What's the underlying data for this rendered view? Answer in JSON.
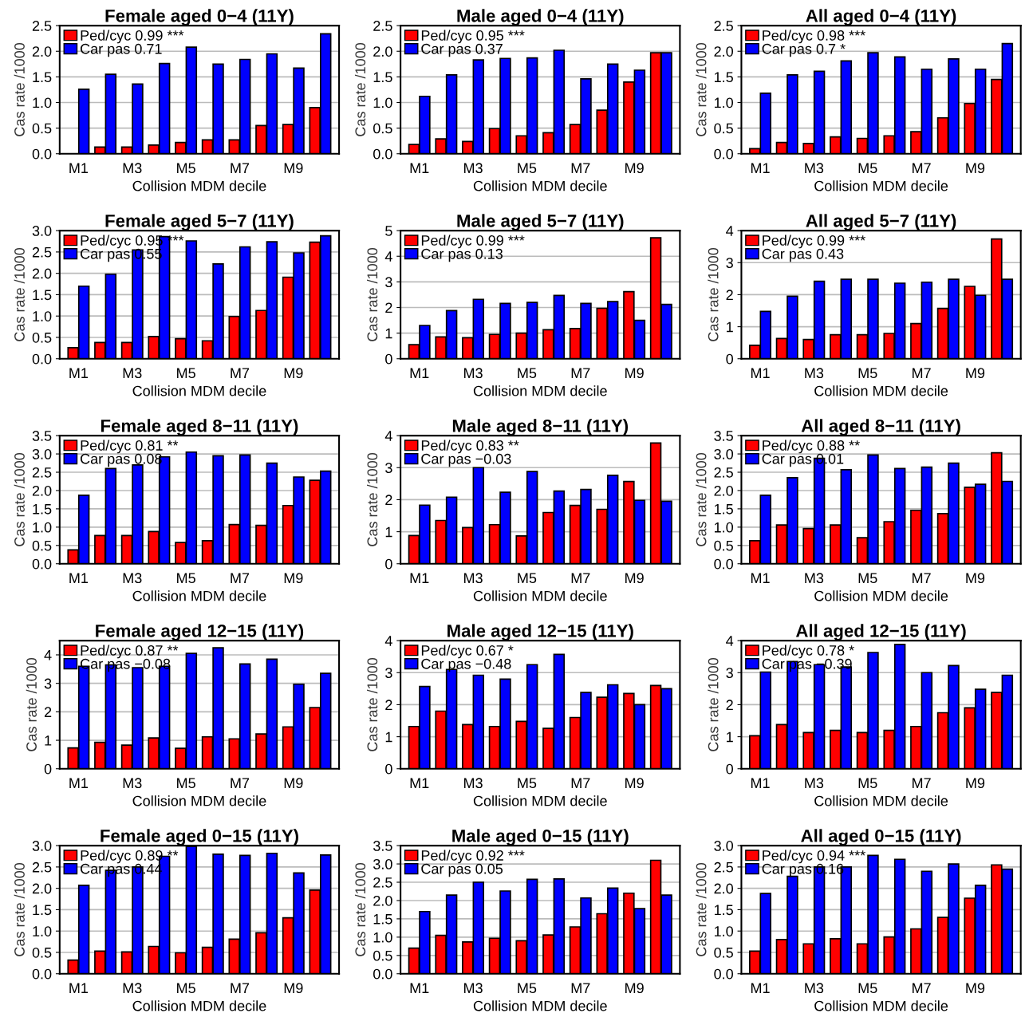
{
  "chart_data": [
    {
      "type": "bar",
      "title": "Female aged 0−4 (11Y)",
      "xlabel": "Collision MDM decile",
      "ylabel": "Cas rate /1000",
      "categories": [
        "M1",
        null,
        "M3",
        null,
        "M5",
        null,
        "M7",
        null,
        "M9",
        null
      ],
      "grid": "y",
      "legend": "top left",
      "ylim": [
        0,
        2.5
      ],
      "yticks": [
        {
          "value": 0,
          "label": "0.0"
        },
        {
          "value": 0.5,
          "label": "0.5"
        },
        {
          "value": 1,
          "label": "1.0"
        },
        {
          "value": 1.5,
          "label": "1.5"
        },
        {
          "value": 2,
          "label": "2.0"
        },
        {
          "value": 2.5,
          "label": "2.5"
        }
      ],
      "series": [
        {
          "name": "Ped/cyc 0.99 ***",
          "color": "#ff0000",
          "values": [
            null,
            0.13,
            0.13,
            0.17,
            0.22,
            0.27,
            0.27,
            0.55,
            0.57,
            0.9
          ]
        },
        {
          "name": "Car pas 0.71",
          "color": "#0000ff",
          "values": [
            1.26,
            1.55,
            1.36,
            1.76,
            2.08,
            1.75,
            1.84,
            1.95,
            1.67,
            2.34
          ]
        }
      ]
    },
    {
      "type": "bar",
      "title": "Male aged 0−4 (11Y)",
      "xlabel": "Collision MDM decile",
      "ylabel": "Cas rate /1000",
      "categories": [
        "M1",
        null,
        "M3",
        null,
        "M5",
        null,
        "M7",
        null,
        "M9",
        null
      ],
      "grid": "y",
      "legend": "top left",
      "ylim": [
        0,
        2.5
      ],
      "yticks": [
        {
          "value": 0,
          "label": "0.0"
        },
        {
          "value": 0.5,
          "label": "0.5"
        },
        {
          "value": 1,
          "label": "1.0"
        },
        {
          "value": 1.5,
          "label": "1.5"
        },
        {
          "value": 2,
          "label": "2.0"
        },
        {
          "value": 2.5,
          "label": "2.5"
        }
      ],
      "series": [
        {
          "name": "Ped/cyc 0.95 ***",
          "color": "#ff0000",
          "values": [
            0.18,
            0.29,
            0.24,
            0.49,
            0.35,
            0.41,
            0.57,
            0.85,
            1.4,
            1.97
          ]
        },
        {
          "name": "Car pas 0.37",
          "color": "#0000ff",
          "values": [
            1.12,
            1.54,
            1.83,
            1.86,
            1.87,
            2.02,
            1.46,
            1.75,
            1.63,
            1.97
          ]
        }
      ]
    },
    {
      "type": "bar",
      "title": "All aged 0−4 (11Y)",
      "xlabel": "Collision MDM decile",
      "ylabel": "Cas rate /1000",
      "categories": [
        "M1",
        null,
        "M3",
        null,
        "M5",
        null,
        "M7",
        null,
        "M9",
        null
      ],
      "grid": "y",
      "legend": "top left",
      "ylim": [
        0,
        2.5
      ],
      "yticks": [
        {
          "value": 0,
          "label": "0.0"
        },
        {
          "value": 0.5,
          "label": "0.5"
        },
        {
          "value": 1,
          "label": "1.0"
        },
        {
          "value": 1.5,
          "label": "1.5"
        },
        {
          "value": 2,
          "label": "2.0"
        },
        {
          "value": 2.5,
          "label": "2.5"
        }
      ],
      "series": [
        {
          "name": "Ped/cyc 0.98 ***",
          "color": "#ff0000",
          "values": [
            0.1,
            0.22,
            0.2,
            0.33,
            0.3,
            0.35,
            0.43,
            0.7,
            0.98,
            1.45
          ]
        },
        {
          "name": "Car pas 0.7 *",
          "color": "#0000ff",
          "values": [
            1.18,
            1.54,
            1.61,
            1.81,
            1.97,
            1.89,
            1.65,
            1.85,
            1.65,
            2.15
          ]
        }
      ]
    },
    {
      "type": "bar",
      "title": "Female aged 5−7 (11Y)",
      "xlabel": "Collision MDM decile",
      "ylabel": "Cas rate /1000",
      "categories": [
        "M1",
        null,
        "M3",
        null,
        "M5",
        null,
        "M7",
        null,
        "M9",
        null
      ],
      "grid": "y",
      "legend": "top left",
      "ylim": [
        0,
        3
      ],
      "yticks": [
        {
          "value": 0,
          "label": "0.0"
        },
        {
          "value": 0.5,
          "label": "0.5"
        },
        {
          "value": 1,
          "label": "1.0"
        },
        {
          "value": 1.5,
          "label": "1.5"
        },
        {
          "value": 2,
          "label": "2.0"
        },
        {
          "value": 2.5,
          "label": "2.5"
        },
        {
          "value": 3,
          "label": "3.0"
        }
      ],
      "series": [
        {
          "name": "Ped/cyc 0.95 ***",
          "color": "#ff0000",
          "values": [
            0.26,
            0.38,
            0.38,
            0.52,
            0.47,
            0.42,
            0.99,
            1.13,
            1.91,
            2.73
          ]
        },
        {
          "name": "Car pas 0.55",
          "color": "#0000ff",
          "values": [
            1.7,
            1.98,
            2.55,
            2.86,
            2.76,
            2.22,
            2.62,
            2.74,
            2.48,
            2.88
          ]
        }
      ]
    },
    {
      "type": "bar",
      "title": "Male aged 5−7 (11Y)",
      "xlabel": "Collision MDM decile",
      "ylabel": "Cas rate /1000",
      "categories": [
        "M1",
        null,
        "M3",
        null,
        "M5",
        null,
        "M7",
        null,
        "M9",
        null
      ],
      "grid": "y",
      "legend": "top left",
      "ylim": [
        0,
        5
      ],
      "yticks": [
        0,
        1,
        2,
        3,
        4,
        5
      ],
      "series": [
        {
          "name": "Ped/cyc 0.99 ***",
          "color": "#ff0000",
          "values": [
            0.55,
            0.85,
            0.82,
            0.95,
            1.0,
            1.13,
            1.18,
            1.97,
            2.62,
            4.72
          ]
        },
        {
          "name": "Car pas 0.13",
          "color": "#0000ff",
          "values": [
            1.3,
            1.88,
            2.32,
            2.16,
            2.2,
            2.47,
            2.16,
            2.23,
            1.5,
            2.12
          ]
        }
      ]
    },
    {
      "type": "bar",
      "title": "All aged 5−7 (11Y)",
      "xlabel": "Collision MDM decile",
      "ylabel": "Cas rate /1000",
      "categories": [
        "M1",
        null,
        "M3",
        null,
        "M5",
        null,
        "M7",
        null,
        "M9",
        null
      ],
      "grid": "y",
      "legend": "top left",
      "ylim": [
        0,
        4
      ],
      "yticks": [
        0,
        1,
        2,
        3,
        4
      ],
      "series": [
        {
          "name": "Ped/cyc 0.99 ***",
          "color": "#ff0000",
          "values": [
            0.42,
            0.63,
            0.6,
            0.75,
            0.75,
            0.79,
            1.1,
            1.57,
            2.26,
            3.74
          ]
        },
        {
          "name": "Car pas 0.43",
          "color": "#0000ff",
          "values": [
            1.48,
            1.95,
            2.42,
            2.48,
            2.48,
            2.36,
            2.39,
            2.48,
            1.98,
            2.48
          ]
        }
      ]
    },
    {
      "type": "bar",
      "title": "Female aged 8−11 (11Y)",
      "xlabel": "Collision MDM decile",
      "ylabel": "Cas rate /1000",
      "categories": [
        "M1",
        null,
        "M3",
        null,
        "M5",
        null,
        "M7",
        null,
        "M9",
        null
      ],
      "grid": "y",
      "legend": "top left",
      "ylim": [
        0,
        3.5
      ],
      "yticks": [
        {
          "value": 0,
          "label": "0.0"
        },
        {
          "value": 0.5,
          "label": "0.5"
        },
        {
          "value": 1,
          "label": "1.0"
        },
        {
          "value": 1.5,
          "label": "1.5"
        },
        {
          "value": 2,
          "label": "2.0"
        },
        {
          "value": 2.5,
          "label": "2.5"
        },
        {
          "value": 3,
          "label": "3.0"
        },
        {
          "value": 3.5,
          "label": "3.5"
        }
      ],
      "series": [
        {
          "name": "Ped/cyc 0.81 **",
          "color": "#ff0000",
          "values": [
            0.38,
            0.77,
            0.77,
            0.88,
            0.58,
            0.63,
            1.07,
            1.05,
            1.59,
            2.28
          ]
        },
        {
          "name": "Car pas 0.08",
          "color": "#0000ff",
          "values": [
            1.87,
            2.6,
            2.7,
            2.92,
            3.05,
            2.95,
            2.97,
            2.75,
            2.37,
            2.53
          ]
        }
      ]
    },
    {
      "type": "bar",
      "title": "Male aged 8−11 (11Y)",
      "xlabel": "Collision MDM decile",
      "ylabel": "Cas rate /1000",
      "categories": [
        "M1",
        null,
        "M3",
        null,
        "M5",
        null,
        "M7",
        null,
        "M9",
        null
      ],
      "grid": "y",
      "legend": "top left",
      "ylim": [
        0,
        4
      ],
      "yticks": [
        0,
        1,
        2,
        3,
        4
      ],
      "series": [
        {
          "name": "Ped/cyc 0.83 **",
          "color": "#ff0000",
          "values": [
            0.88,
            1.35,
            1.13,
            1.22,
            0.87,
            1.6,
            1.82,
            1.7,
            2.57,
            3.77
          ]
        },
        {
          "name": "Car pas −0.03",
          "color": "#0000ff",
          "values": [
            1.83,
            2.08,
            3.0,
            2.23,
            2.88,
            2.27,
            2.32,
            2.76,
            1.98,
            1.95
          ]
        }
      ]
    },
    {
      "type": "bar",
      "title": "All aged 8−11 (11Y)",
      "xlabel": "Collision MDM decile",
      "ylabel": "Cas rate /1000",
      "categories": [
        "M1",
        null,
        "M3",
        null,
        "M5",
        null,
        "M7",
        null,
        "M9",
        null
      ],
      "grid": "y",
      "legend": "top left",
      "ylim": [
        0,
        3.5
      ],
      "yticks": [
        {
          "value": 0,
          "label": "0.0"
        },
        {
          "value": 0.5,
          "label": "0.5"
        },
        {
          "value": 1,
          "label": "1.0"
        },
        {
          "value": 1.5,
          "label": "1.5"
        },
        {
          "value": 2,
          "label": "2.0"
        },
        {
          "value": 2.5,
          "label": "2.5"
        },
        {
          "value": 3,
          "label": "3.0"
        },
        {
          "value": 3.5,
          "label": "3.5"
        }
      ],
      "series": [
        {
          "name": "Ped/cyc 0.88 **",
          "color": "#ff0000",
          "values": [
            0.63,
            1.06,
            0.96,
            1.06,
            0.71,
            1.15,
            1.46,
            1.37,
            2.09,
            3.03
          ]
        },
        {
          "name": "Car pas 0.01",
          "color": "#0000ff",
          "values": [
            1.87,
            2.35,
            2.88,
            2.57,
            2.97,
            2.6,
            2.64,
            2.75,
            2.17,
            2.25
          ]
        }
      ]
    },
    {
      "type": "bar",
      "title": "Female aged 12−15 (11Y)",
      "xlabel": "Collision MDM decile",
      "ylabel": "Cas rate /1000",
      "categories": [
        "M1",
        null,
        "M3",
        null,
        "M5",
        null,
        "M7",
        null,
        "M9",
        null
      ],
      "grid": "y",
      "legend": "top left",
      "ylim": [
        0,
        4.5
      ],
      "yticks": [
        0,
        1,
        2,
        3,
        4
      ],
      "series": [
        {
          "name": "Ped/cyc 0.87 **",
          "color": "#ff0000",
          "values": [
            0.73,
            0.93,
            0.83,
            1.08,
            0.72,
            1.12,
            1.05,
            1.22,
            1.47,
            2.15
          ]
        },
        {
          "name": "Car pas −0.08",
          "color": "#0000ff",
          "values": [
            3.6,
            3.65,
            3.55,
            3.6,
            4.05,
            4.25,
            3.68,
            3.85,
            2.97,
            3.35
          ]
        }
      ]
    },
    {
      "type": "bar",
      "title": "Male aged 12−15 (11Y)",
      "xlabel": "Collision MDM decile",
      "ylabel": "Cas rate /1000",
      "categories": [
        "M1",
        null,
        "M3",
        null,
        "M5",
        null,
        "M7",
        null,
        "M9",
        null
      ],
      "grid": "y",
      "legend": "top left",
      "ylim": [
        0,
        4
      ],
      "yticks": [
        0,
        1,
        2,
        3,
        4
      ],
      "series": [
        {
          "name": "Ped/cyc 0.67 *",
          "color": "#ff0000",
          "values": [
            1.32,
            1.8,
            1.38,
            1.32,
            1.48,
            1.26,
            1.6,
            2.23,
            2.35,
            2.6
          ]
        },
        {
          "name": "Car pas −0.48",
          "color": "#0000ff",
          "values": [
            2.57,
            3.1,
            2.92,
            2.8,
            3.25,
            3.57,
            2.38,
            2.62,
            2.0,
            2.5
          ]
        }
      ]
    },
    {
      "type": "bar",
      "title": "All aged 12−15 (11Y)",
      "xlabel": "Collision MDM decile",
      "ylabel": "Cas rate /1000",
      "categories": [
        "M1",
        null,
        "M3",
        null,
        "M5",
        null,
        "M7",
        null,
        "M9",
        null
      ],
      "grid": "y",
      "legend": "top left",
      "ylim": [
        0,
        4
      ],
      "yticks": [
        0,
        1,
        2,
        3,
        4
      ],
      "series": [
        {
          "name": "Ped/cyc 0.78 *",
          "color": "#ff0000",
          "values": [
            1.03,
            1.38,
            1.13,
            1.2,
            1.13,
            1.2,
            1.32,
            1.75,
            1.9,
            2.38
          ]
        },
        {
          "name": "Car pas −0.39",
          "color": "#0000ff",
          "values": [
            3.02,
            3.35,
            3.25,
            3.18,
            3.63,
            3.88,
            3.0,
            3.22,
            2.48,
            2.92
          ]
        }
      ]
    },
    {
      "type": "bar",
      "title": "Female aged 0−15 (11Y)",
      "xlabel": "Collision MDM decile",
      "ylabel": "Cas rate /1000",
      "categories": [
        "M1",
        null,
        "M3",
        null,
        "M5",
        null,
        "M7",
        null,
        "M9",
        null
      ],
      "grid": "y",
      "legend": "top left",
      "ylim": [
        0,
        3
      ],
      "yticks": [
        {
          "value": 0,
          "label": "0.0"
        },
        {
          "value": 0.5,
          "label": "0.5"
        },
        {
          "value": 1,
          "label": "1.0"
        },
        {
          "value": 1.5,
          "label": "1.5"
        },
        {
          "value": 2,
          "label": "2.0"
        },
        {
          "value": 2.5,
          "label": "2.5"
        },
        {
          "value": 3,
          "label": "3.0"
        }
      ],
      "series": [
        {
          "name": "Ped/cyc 0.89 **",
          "color": "#ff0000",
          "values": [
            0.32,
            0.53,
            0.51,
            0.64,
            0.49,
            0.62,
            0.81,
            0.96,
            1.31,
            1.96
          ]
        },
        {
          "name": "Car pas 0.44",
          "color": "#0000ff",
          "values": [
            2.07,
            2.42,
            2.5,
            2.75,
            2.98,
            2.8,
            2.77,
            2.82,
            2.36,
            2.78
          ]
        }
      ]
    },
    {
      "type": "bar",
      "title": "Male aged 0−15 (11Y)",
      "xlabel": "Collision MDM decile",
      "ylabel": "Cas rate /1000",
      "categories": [
        "M1",
        null,
        "M3",
        null,
        "M5",
        null,
        "M7",
        null,
        "M9",
        null
      ],
      "grid": "y",
      "legend": "top left",
      "ylim": [
        0,
        3.5
      ],
      "yticks": [
        {
          "value": 0,
          "label": "0.0"
        },
        {
          "value": 0.5,
          "label": "0.5"
        },
        {
          "value": 1,
          "label": "1.0"
        },
        {
          "value": 1.5,
          "label": "1.5"
        },
        {
          "value": 2,
          "label": "2.0"
        },
        {
          "value": 2.5,
          "label": "2.5"
        },
        {
          "value": 3,
          "label": "3.0"
        },
        {
          "value": 3.5,
          "label": "3.5"
        }
      ],
      "series": [
        {
          "name": "Ped/cyc 0.92 ***",
          "color": "#ff0000",
          "values": [
            0.7,
            1.05,
            0.87,
            0.97,
            0.9,
            1.06,
            1.28,
            1.64,
            2.2,
            3.1
          ]
        },
        {
          "name": "Car pas 0.05",
          "color": "#0000ff",
          "values": [
            1.7,
            2.15,
            2.5,
            2.26,
            2.58,
            2.59,
            2.07,
            2.34,
            1.78,
            2.15
          ]
        }
      ]
    },
    {
      "type": "bar",
      "title": "All aged 0−15 (11Y)",
      "xlabel": "Collision MDM decile",
      "ylabel": "Cas rate /1000",
      "categories": [
        "M1",
        null,
        "M3",
        null,
        "M5",
        null,
        "M7",
        null,
        "M9",
        null
      ],
      "grid": "y",
      "legend": "top left",
      "ylim": [
        0,
        3
      ],
      "yticks": [
        {
          "value": 0,
          "label": "0.0"
        },
        {
          "value": 0.5,
          "label": "0.5"
        },
        {
          "value": 1,
          "label": "1.0"
        },
        {
          "value": 1.5,
          "label": "1.5"
        },
        {
          "value": 2,
          "label": "2.0"
        },
        {
          "value": 2.5,
          "label": "2.5"
        },
        {
          "value": 3,
          "label": "3.0"
        }
      ],
      "series": [
        {
          "name": "Ped/cyc 0.94 ***",
          "color": "#ff0000",
          "values": [
            0.53,
            0.8,
            0.7,
            0.82,
            0.7,
            0.86,
            1.05,
            1.32,
            1.77,
            2.55
          ]
        },
        {
          "name": "Car pas 0.16",
          "color": "#0000ff",
          "values": [
            1.88,
            2.28,
            2.5,
            2.5,
            2.77,
            2.68,
            2.4,
            2.57,
            2.07,
            2.45
          ]
        }
      ]
    }
  ]
}
